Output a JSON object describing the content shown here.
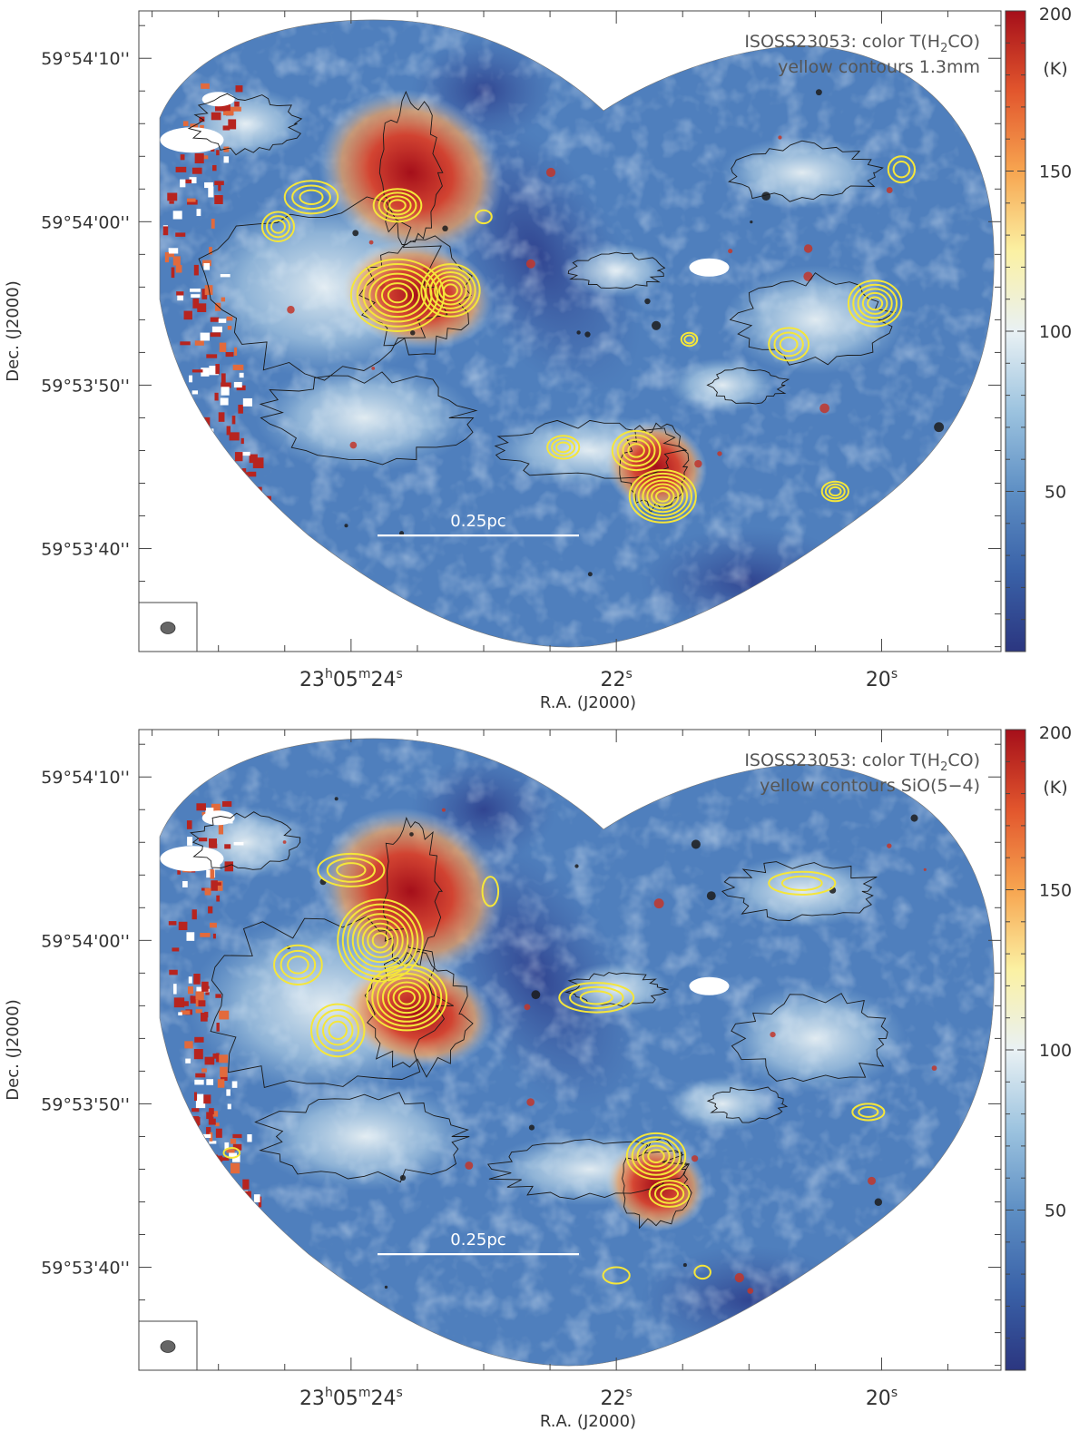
{
  "panels": [
    {
      "title": "ISOSS23053: color T(H",
      "title_sub": "2",
      "title_end": "CO)",
      "subtitle": "yellow contours 1.3mm",
      "ra_ticks": [
        {
          "value": 24,
          "h": "23",
          "m": "05",
          "s": "24",
          "label_mode": "full"
        },
        {
          "value": 22,
          "s": "22",
          "label_mode": "short"
        },
        {
          "value": 20,
          "s": "20",
          "label_mode": "short"
        }
      ],
      "dec_ticks": [
        {
          "value": 10,
          "label": "59°54'10''"
        },
        {
          "value": 0,
          "label": "59°54'00''"
        },
        {
          "value": -10,
          "label": "59°53'50''"
        },
        {
          "value": -20,
          "label": "59°53'40''"
        }
      ],
      "xlabel": "R.A. (J2000)",
      "ylabel": "Dec. (J2000)",
      "scalebar_label": "0.25pc",
      "colorbar": {
        "unit": "(K)",
        "ticks": [
          {
            "value": 200,
            "label": "200"
          },
          {
            "value": 150,
            "label": "150"
          },
          {
            "value": 100,
            "label": "100"
          },
          {
            "value": 50,
            "label": "50"
          }
        ],
        "min": 0,
        "max": 200,
        "colors": [
          "#2b3680",
          "#3a62a8",
          "#5e8fc4",
          "#9cc3df",
          "#e9f1f4",
          "#fbf1a3",
          "#f7a550",
          "#e2562d",
          "#a50f1a"
        ]
      },
      "contour_color": "#f5e63a",
      "hot_sources": [
        {
          "name": "main-filament",
          "ra": 23.55,
          "dec": 3.0,
          "rx": 0.55,
          "ry": 4.5,
          "rot": 25
        },
        {
          "name": "main-core",
          "ra": 23.5,
          "dec": -4.5,
          "rx": 0.45,
          "ry": 3.0,
          "rot": 10
        },
        {
          "name": "south-core",
          "ra": 21.7,
          "dec": -15.0,
          "rx": 0.3,
          "ry": 2.5,
          "rot": 20
        }
      ],
      "contour_sources": [
        {
          "ra": 23.65,
          "dec": -4.5,
          "rx": 0.35,
          "ry": 2.2,
          "levels": 7
        },
        {
          "ra": 23.25,
          "dec": -4.2,
          "rx": 0.22,
          "ry": 1.6,
          "levels": 6
        },
        {
          "ra": 23.65,
          "dec": 1.0,
          "rx": 0.18,
          "ry": 1.0,
          "levels": 4
        },
        {
          "ra": 24.3,
          "dec": 1.5,
          "rx": 0.2,
          "ry": 1.0,
          "levels": 3
        },
        {
          "ra": 24.55,
          "dec": -0.3,
          "rx": 0.12,
          "ry": 0.9,
          "levels": 3
        },
        {
          "ra": 21.65,
          "dec": -16.8,
          "rx": 0.25,
          "ry": 1.6,
          "levels": 7
        },
        {
          "ra": 21.85,
          "dec": -14.0,
          "rx": 0.18,
          "ry": 1.2,
          "levels": 4
        },
        {
          "ra": 22.4,
          "dec": -13.8,
          "rx": 0.12,
          "ry": 0.7,
          "levels": 3
        },
        {
          "ra": 20.05,
          "dec": -5.0,
          "rx": 0.2,
          "ry": 1.4,
          "levels": 5
        },
        {
          "ra": 20.7,
          "dec": -7.5,
          "rx": 0.15,
          "ry": 1.0,
          "levels": 3
        },
        {
          "ra": 20.35,
          "dec": -16.5,
          "rx": 0.1,
          "ry": 0.6,
          "levels": 3
        },
        {
          "ra": 21.45,
          "dec": -7.2,
          "rx": 0.06,
          "ry": 0.4,
          "levels": 2
        },
        {
          "ra": 19.85,
          "dec": 3.2,
          "rx": 0.1,
          "ry": 0.8,
          "levels": 2
        },
        {
          "ra": 23.0,
          "dec": 0.3,
          "rx": 0.06,
          "ry": 0.4,
          "levels": 1
        }
      ]
    },
    {
      "title": "ISOSS23053: color T(H",
      "title_sub": "2",
      "title_end": "CO)",
      "subtitle": "yellow contours SiO(5−4)",
      "ra_ticks": [
        {
          "value": 24,
          "h": "23",
          "m": "05",
          "s": "24",
          "label_mode": "full"
        },
        {
          "value": 22,
          "s": "22",
          "label_mode": "short"
        },
        {
          "value": 20,
          "s": "20",
          "label_mode": "short"
        }
      ],
      "dec_ticks": [
        {
          "value": 10,
          "label": "59°54'10''"
        },
        {
          "value": 0,
          "label": "59°54'00''"
        },
        {
          "value": -10,
          "label": "59°53'50''"
        },
        {
          "value": -20,
          "label": "59°53'40''"
        }
      ],
      "xlabel": "R.A. (J2000)",
      "ylabel": "Dec. (J2000)",
      "scalebar_label": "0.25pc",
      "colorbar": {
        "unit": "(K)",
        "ticks": [
          {
            "value": 200,
            "label": "200"
          },
          {
            "value": 150,
            "label": "150"
          },
          {
            "value": 100,
            "label": "100"
          },
          {
            "value": 50,
            "label": "50"
          }
        ],
        "min": 0,
        "max": 200,
        "colors": [
          "#2b3680",
          "#3a62a8",
          "#5e8fc4",
          "#9cc3df",
          "#e9f1f4",
          "#fbf1a3",
          "#f7a550",
          "#e2562d",
          "#a50f1a"
        ]
      },
      "contour_color": "#f5e63a",
      "hot_sources": [
        {
          "name": "main-filament",
          "ra": 23.55,
          "dec": 3.0,
          "rx": 0.55,
          "ry": 4.5,
          "rot": 25
        },
        {
          "name": "main-core",
          "ra": 23.5,
          "dec": -4.5,
          "rx": 0.45,
          "ry": 3.0,
          "rot": 10
        },
        {
          "name": "south-core",
          "ra": 21.7,
          "dec": -15.0,
          "rx": 0.3,
          "ry": 2.5,
          "rot": 20
        }
      ],
      "contour_sources": [
        {
          "ra": 23.78,
          "dec": 0.0,
          "rx": 0.32,
          "ry": 2.5,
          "levels": 8
        },
        {
          "ra": 23.58,
          "dec": -3.5,
          "rx": 0.3,
          "ry": 2.0,
          "levels": 7
        },
        {
          "ra": 24.1,
          "dec": -5.5,
          "rx": 0.2,
          "ry": 1.6,
          "levels": 4
        },
        {
          "ra": 24.4,
          "dec": -1.5,
          "rx": 0.18,
          "ry": 1.2,
          "levels": 3
        },
        {
          "ra": 24.0,
          "dec": 4.3,
          "rx": 0.25,
          "ry": 1.0,
          "levels": 3
        },
        {
          "ra": 22.15,
          "dec": -3.5,
          "rx": 0.28,
          "ry": 0.9,
          "levels": 3
        },
        {
          "ra": 21.7,
          "dec": -13.2,
          "rx": 0.22,
          "ry": 1.4,
          "levels": 5
        },
        {
          "ra": 21.6,
          "dec": -15.5,
          "rx": 0.15,
          "ry": 0.8,
          "levels": 3
        },
        {
          "ra": 20.6,
          "dec": 3.5,
          "rx": 0.25,
          "ry": 0.7,
          "levels": 2
        },
        {
          "ra": 20.1,
          "dec": -10.5,
          "rx": 0.12,
          "ry": 0.5,
          "levels": 2
        },
        {
          "ra": 22.95,
          "dec": 3.0,
          "rx": 0.06,
          "ry": 0.9,
          "levels": 1
        },
        {
          "ra": 22.0,
          "dec": -20.5,
          "rx": 0.1,
          "ry": 0.5,
          "levels": 1
        },
        {
          "ra": 21.35,
          "dec": -20.3,
          "rx": 0.06,
          "ry": 0.4,
          "levels": 1
        },
        {
          "ra": 24.9,
          "dec": -13.0,
          "rx": 0.06,
          "ry": 0.3,
          "levels": 1
        }
      ]
    }
  ]
}
